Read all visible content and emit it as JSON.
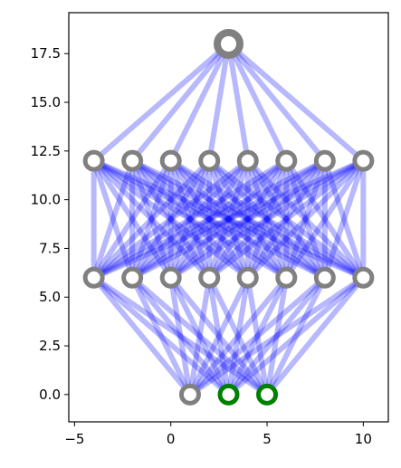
{
  "chart_data": {
    "type": "scatter",
    "title": "",
    "xlabel": "",
    "ylabel": "",
    "xlim": [
      -5.3,
      11.3
    ],
    "ylim": [
      -1.4,
      19.6
    ],
    "xticks": [
      -5,
      0,
      5,
      10
    ],
    "yticks": [
      0.0,
      2.5,
      5.0,
      7.5,
      10.0,
      12.5,
      15.0,
      17.5
    ],
    "xtick_labels": [
      "−5",
      "0",
      "5",
      "10"
    ],
    "ytick_labels": [
      "0.0",
      "2.5",
      "5.0",
      "7.5",
      "10.0",
      "12.5",
      "15.0",
      "17.5"
    ],
    "grid": false,
    "edge_color": "#0000ff",
    "nodes": [
      {
        "x": 1,
        "y": 0,
        "color": "#808080",
        "size": "normal"
      },
      {
        "x": 3,
        "y": 0,
        "color": "#008000",
        "size": "normal"
      },
      {
        "x": 5,
        "y": 0,
        "color": "#008000",
        "size": "normal"
      },
      {
        "x": -4,
        "y": 6,
        "color": "#808080",
        "size": "normal"
      },
      {
        "x": -2,
        "y": 6,
        "color": "#808080",
        "size": "normal"
      },
      {
        "x": 0,
        "y": 6,
        "color": "#808080",
        "size": "normal"
      },
      {
        "x": 2,
        "y": 6,
        "color": "#808080",
        "size": "normal"
      },
      {
        "x": 4,
        "y": 6,
        "color": "#808080",
        "size": "normal"
      },
      {
        "x": 6,
        "y": 6,
        "color": "#808080",
        "size": "normal"
      },
      {
        "x": 8,
        "y": 6,
        "color": "#808080",
        "size": "normal"
      },
      {
        "x": 10,
        "y": 6,
        "color": "#808080",
        "size": "normal"
      },
      {
        "x": -4,
        "y": 12,
        "color": "#808080",
        "size": "normal"
      },
      {
        "x": -2,
        "y": 12,
        "color": "#808080",
        "size": "normal"
      },
      {
        "x": 0,
        "y": 12,
        "color": "#808080",
        "size": "normal"
      },
      {
        "x": 2,
        "y": 12,
        "color": "#808080",
        "size": "normal"
      },
      {
        "x": 4,
        "y": 12,
        "color": "#808080",
        "size": "normal"
      },
      {
        "x": 6,
        "y": 12,
        "color": "#808080",
        "size": "normal"
      },
      {
        "x": 8,
        "y": 12,
        "color": "#808080",
        "size": "normal"
      },
      {
        "x": 10,
        "y": 12,
        "color": "#808080",
        "size": "normal"
      },
      {
        "x": 3,
        "y": 18,
        "color": "#808080",
        "size": "large"
      }
    ],
    "edges": [
      {
        "from_layer": [
          0,
          3
        ],
        "to_layer": [
          3,
          11
        ]
      },
      {
        "from_layer": [
          3,
          11
        ],
        "to_layer": [
          11,
          19
        ]
      },
      {
        "from_layer": [
          11,
          19
        ],
        "to_layer": [
          19,
          20
        ]
      }
    ]
  }
}
